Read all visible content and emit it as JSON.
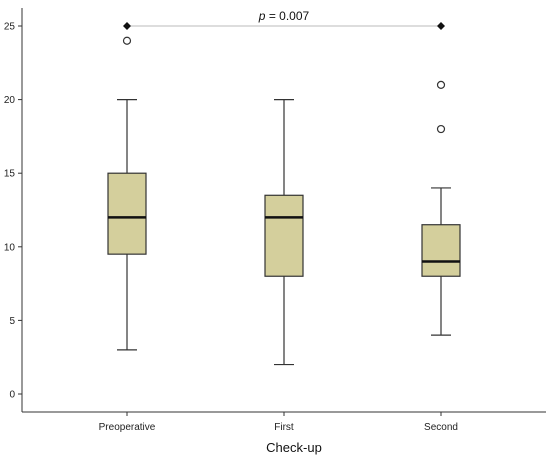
{
  "chart_data": {
    "type": "boxplot",
    "xlabel": "Check-up",
    "ylabel": "",
    "ylim": [
      0,
      25
    ],
    "yticks": [
      0,
      5,
      10,
      15,
      20,
      25
    ],
    "categories": [
      "Preoperative",
      "First",
      "Second"
    ],
    "boxes": [
      {
        "category": "Preoperative",
        "whisker_low": 3,
        "q1": 9.5,
        "median": 12,
        "q3": 15,
        "whisker_high": 20,
        "outliers": [
          24
        ]
      },
      {
        "category": "First",
        "whisker_low": 2,
        "q1": 8,
        "median": 12,
        "q3": 13.5,
        "whisker_high": 20,
        "outliers": []
      },
      {
        "category": "Second",
        "whisker_low": 4,
        "q1": 8,
        "median": 9,
        "q3": 11.5,
        "whisker_high": 14,
        "outliers": [
          18,
          21
        ]
      }
    ],
    "significance": {
      "from": "Preoperative",
      "to": "Second",
      "y": 25,
      "p_symbol": "p",
      "p_value_text": " = 0.007"
    },
    "colors": {
      "box_fill": "#d4cf9c",
      "box_stroke": "#333333",
      "median": "#111111",
      "bracket": "#bbbbbb",
      "marker": "#111111"
    },
    "grid": false
  }
}
